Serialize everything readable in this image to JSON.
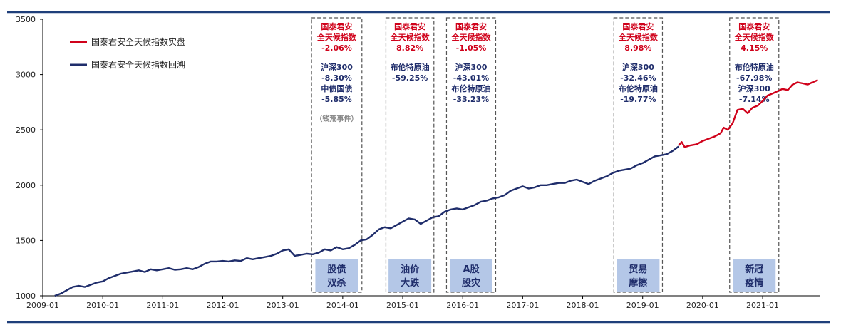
{
  "chart_data": {
    "type": "line",
    "title": "",
    "xlabel": "",
    "ylabel": "",
    "ylim": [
      1000,
      3500
    ],
    "yticks": [
      1000,
      1500,
      2000,
      2500,
      3000,
      3500
    ],
    "xticks": [
      "2009-01",
      "2010-01",
      "2011-01",
      "2012-01",
      "2013-01",
      "2014-01",
      "2015-01",
      "2016-01",
      "2017-01",
      "2018-01",
      "2019-01",
      "2020-01",
      "2021-01"
    ],
    "xlim": [
      2009.0,
      2021.95
    ],
    "grid": false,
    "legend": "top-left",
    "series": [
      {
        "name": "国泰君安全天候指数实盘",
        "color": "#d0021b",
        "x": [
          2019.6,
          2019.65,
          2019.7,
          2019.8,
          2019.9,
          2020.0,
          2020.1,
          2020.2,
          2020.3,
          2020.35,
          2020.42,
          2020.5,
          2020.58,
          2020.67,
          2020.75,
          2020.83,
          2020.92,
          2021.0,
          2021.08,
          2021.17,
          2021.25,
          2021.33,
          2021.42,
          2021.5,
          2021.58,
          2021.67,
          2021.75,
          2021.83,
          2021.92
        ],
        "y": [
          2360,
          2390,
          2345,
          2360,
          2370,
          2400,
          2420,
          2440,
          2470,
          2520,
          2500,
          2560,
          2680,
          2690,
          2650,
          2700,
          2720,
          2760,
          2810,
          2830,
          2850,
          2870,
          2860,
          2910,
          2930,
          2920,
          2910,
          2930,
          2950
        ]
      },
      {
        "name": "国泰君安全天候指数回溯",
        "color": "#1f2d6b",
        "x": [
          2009.2,
          2009.3,
          2009.4,
          2009.5,
          2009.6,
          2009.7,
          2009.8,
          2009.9,
          2010.0,
          2010.1,
          2010.2,
          2010.3,
          2010.4,
          2010.5,
          2010.6,
          2010.7,
          2010.8,
          2010.9,
          2011.0,
          2011.1,
          2011.2,
          2011.3,
          2011.4,
          2011.5,
          2011.6,
          2011.7,
          2011.8,
          2011.9,
          2012.0,
          2012.1,
          2012.2,
          2012.3,
          2012.4,
          2012.5,
          2012.6,
          2012.7,
          2012.8,
          2012.9,
          2013.0,
          2013.1,
          2013.2,
          2013.3,
          2013.4,
          2013.5,
          2013.6,
          2013.7,
          2013.8,
          2013.9,
          2014.0,
          2014.1,
          2014.2,
          2014.3,
          2014.4,
          2014.5,
          2014.6,
          2014.7,
          2014.8,
          2014.9,
          2015.0,
          2015.1,
          2015.2,
          2015.3,
          2015.4,
          2015.5,
          2015.6,
          2015.7,
          2015.8,
          2015.9,
          2016.0,
          2016.1,
          2016.2,
          2016.3,
          2016.4,
          2016.5,
          2016.6,
          2016.7,
          2016.8,
          2016.9,
          2017.0,
          2017.1,
          2017.2,
          2017.3,
          2017.4,
          2017.5,
          2017.6,
          2017.7,
          2017.8,
          2017.9,
          2018.0,
          2018.1,
          2018.2,
          2018.3,
          2018.4,
          2018.5,
          2018.6,
          2018.7,
          2018.8,
          2018.9,
          2019.0,
          2019.1,
          2019.2,
          2019.3,
          2019.4,
          2019.5,
          2019.6
        ],
        "y": [
          1000,
          1020,
          1050,
          1080,
          1090,
          1080,
          1100,
          1120,
          1130,
          1160,
          1180,
          1200,
          1210,
          1220,
          1230,
          1215,
          1240,
          1230,
          1240,
          1250,
          1235,
          1240,
          1250,
          1240,
          1260,
          1290,
          1310,
          1310,
          1315,
          1310,
          1320,
          1315,
          1340,
          1330,
          1340,
          1350,
          1360,
          1380,
          1410,
          1420,
          1360,
          1370,
          1380,
          1375,
          1390,
          1420,
          1410,
          1440,
          1420,
          1430,
          1460,
          1500,
          1510,
          1550,
          1600,
          1620,
          1610,
          1640,
          1670,
          1700,
          1690,
          1650,
          1680,
          1710,
          1720,
          1760,
          1780,
          1790,
          1780,
          1800,
          1820,
          1850,
          1860,
          1880,
          1890,
          1910,
          1950,
          1970,
          1990,
          1970,
          1980,
          2000,
          2000,
          2010,
          2020,
          2020,
          2040,
          2050,
          2030,
          2010,
          2040,
          2060,
          2080,
          2110,
          2130,
          2140,
          2150,
          2180,
          2200,
          2230,
          2260,
          2270,
          2280,
          2310,
          2350
        ]
      }
    ],
    "event_boxes": [
      {
        "x0": 2013.48,
        "x1": 2014.32,
        "header": [
          "国泰君安",
          "全天候指数",
          "-2.06%"
        ],
        "body": [
          "沪深300",
          "-8.30%",
          "中债国债",
          "-5.85%"
        ],
        "note": "（钱荒事件）",
        "label": [
          "股债",
          "双杀"
        ]
      },
      {
        "x0": 2014.72,
        "x1": 2015.52,
        "header": [
          "国泰君安",
          "全天候指数",
          "8.82%"
        ],
        "body": [
          "布伦特原油",
          "-59.25%"
        ],
        "note": "",
        "label": [
          "油价",
          "大跌"
        ]
      },
      {
        "x0": 2015.73,
        "x1": 2016.55,
        "header": [
          "国泰君安",
          "全天候指数",
          "-1.05%"
        ],
        "body": [
          "沪深300",
          "-43.01%",
          "布伦特原油",
          "-33.23%"
        ],
        "note": "",
        "label": [
          "A股",
          "股灾"
        ]
      },
      {
        "x0": 2018.52,
        "x1": 2019.33,
        "header": [
          "国泰君安",
          "全天候指数",
          "8.98%"
        ],
        "body": [
          "沪深300",
          "-32.46%",
          "布伦特原油",
          "-19.77%"
        ],
        "note": "",
        "label": [
          "贸易",
          "摩擦"
        ]
      },
      {
        "x0": 2020.45,
        "x1": 2021.27,
        "header": [
          "国泰君安",
          "全天候指数",
          "4.15%"
        ],
        "body": [
          "布伦特原油",
          "-67.98%",
          "沪深300",
          "-7.14%"
        ],
        "note": "",
        "label": [
          "新冠",
          "疫情"
        ]
      }
    ]
  }
}
